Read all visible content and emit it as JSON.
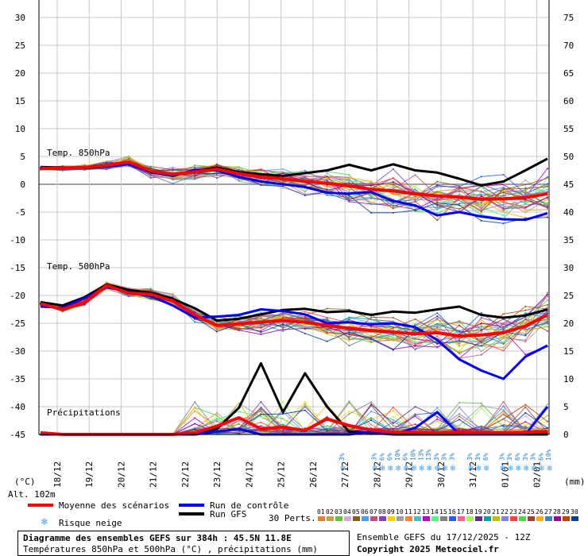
{
  "chart_data": {
    "type": "line",
    "title": "Diagramme des ensembles GEFS sur 384h : 45.5N 11.8E",
    "subtitle": "Températures 850hPa et 500hPa (°C) , précipitations (mm)",
    "left_axis": {
      "label": "(°C)",
      "min": -45,
      "max": 30,
      "ticks": [
        30,
        25,
        20,
        15,
        10,
        5,
        0,
        -5,
        -10,
        -15,
        -20,
        -25,
        -30,
        -35,
        -40,
        -45
      ]
    },
    "right_axis": {
      "label": "(mm)",
      "ticks": [
        75,
        70,
        65,
        60,
        55,
        50,
        45,
        40,
        35,
        30,
        25,
        20,
        15,
        10,
        5,
        0
      ]
    },
    "x_labels": [
      "18/12",
      "19/12",
      "20/12",
      "21/12",
      "22/12",
      "23/12",
      "24/12",
      "25/12",
      "26/12",
      "27/12",
      "28/12",
      "29/12",
      "30/12",
      "31/12",
      "01/01",
      "02/01"
    ],
    "panel_labels": {
      "t850": "Temp. 850hPa",
      "t500": "Temp. 500hPa",
      "precip": "Précipitations"
    },
    "grid": true,
    "series": [
      {
        "name": "Moyenne des scénarios",
        "color": "#ff0000",
        "t850": [
          2.8,
          2.9,
          3.0,
          3.4,
          4.0,
          2.4,
          1.8,
          2.2,
          2.7,
          1.9,
          1.3,
          1.0,
          0.5,
          0.2,
          -0.3,
          -0.9,
          -1.2,
          -1.7,
          -2.1,
          -2.3,
          -2.7,
          -2.6,
          -2.4,
          -1.7
        ],
        "t500": [
          -21.5,
          -22.5,
          -21.2,
          -18.2,
          -19.6,
          -19.8,
          -21.0,
          -23.5,
          -25.4,
          -25.1,
          -24.8,
          -24.5,
          -24.8,
          -25.4,
          -25.9,
          -26.3,
          -26.6,
          -26.9,
          -26.7,
          -27.3,
          -27.1,
          -26.7,
          -25.5,
          -23.5
        ],
        "precip": [
          0.3,
          0,
          0,
          0,
          0,
          0,
          0,
          0.3,
          1.5,
          3.0,
          1.0,
          1.3,
          0.7,
          2.8,
          1.6,
          0.8,
          0.4,
          0.4,
          0.3,
          0.4,
          0.3,
          0.3,
          0.4,
          0.5
        ]
      },
      {
        "name": "Run de contrôle",
        "color": "#0000ff",
        "t850": [
          3.0,
          2.8,
          3.1,
          3.2,
          3.6,
          2.3,
          1.5,
          2.6,
          2.5,
          1.3,
          0.5,
          0.0,
          -0.5,
          -1.5,
          -1.7,
          -1.4,
          -3.0,
          -3.8,
          -5.6,
          -5.0,
          -5.8,
          -6.3,
          -6.4,
          -5.2
        ],
        "t500": [
          -22.0,
          -22.2,
          -20.5,
          -18.5,
          -19.4,
          -20.1,
          -21.8,
          -24.0,
          -23.8,
          -23.5,
          -22.5,
          -22.8,
          -23.4,
          -25.0,
          -24.8,
          -25.2,
          -25.0,
          -25.7,
          -28.0,
          -31.5,
          -33.5,
          -35.0,
          -31.0,
          -29.0
        ],
        "precip": [
          0,
          0,
          0,
          0,
          0,
          0,
          0,
          0,
          0.5,
          1.0,
          0,
          0,
          0,
          0,
          0,
          0.5,
          0,
          1.2,
          4.0,
          0,
          0,
          0,
          0,
          5.0
        ]
      },
      {
        "name": "Run GFS",
        "color": "#000000",
        "t850": [
          3.1,
          3.0,
          2.9,
          3.2,
          3.8,
          2.2,
          1.6,
          2.4,
          3.0,
          2.2,
          1.8,
          1.5,
          2.0,
          2.5,
          3.5,
          2.5,
          3.6,
          2.5,
          2.1,
          1.0,
          -0.2,
          0.5,
          2.5,
          4.6
        ],
        "t500": [
          -21.2,
          -21.8,
          -20.3,
          -18.0,
          -19.0,
          -19.5,
          -20.6,
          -22.3,
          -24.5,
          -24.2,
          -23.4,
          -22.6,
          -22.4,
          -23.0,
          -22.8,
          -23.5,
          -22.9,
          -23.1,
          -22.5,
          -22.0,
          -23.5,
          -24.0,
          -23.6,
          -22.5
        ],
        "precip": [
          0,
          0,
          0,
          0,
          0,
          0,
          0,
          0,
          1.0,
          4.8,
          12.8,
          4.0,
          11.0,
          5.0,
          0.5,
          0.3,
          0,
          0,
          0,
          0,
          0,
          0,
          0,
          0
        ]
      }
    ],
    "snow_markers": [
      {
        "day": "27/12",
        "labels": [
          "3%"
        ]
      },
      {
        "day": "28/12",
        "labels": [
          "3%",
          "6%",
          "6%",
          "10%",
          "6%",
          "10%",
          "13%",
          "13%",
          "3%",
          "3%",
          "3%"
        ]
      },
      {
        "day": "31/12",
        "labels": [
          "3%",
          "3%",
          "6%"
        ]
      },
      {
        "day": "01/01",
        "labels": [
          "3%",
          "3%",
          "6%",
          "3%",
          "3%",
          "6%",
          "10%"
        ]
      }
    ]
  },
  "legend": {
    "mean": "Moyenne des scénarios",
    "control": "Run de contrôle",
    "gfs": "Run GFS",
    "snow": "Risque neige",
    "perts": "30 Perts.",
    "alt": "Alt. 102m"
  },
  "perturbations": {
    "labels": [
      "01",
      "02",
      "03",
      "04",
      "05",
      "06",
      "07",
      "08",
      "09",
      "10",
      "11",
      "12",
      "13",
      "14",
      "15",
      "16",
      "17",
      "18",
      "19",
      "20",
      "21",
      "22",
      "23",
      "24",
      "25",
      "26",
      "27",
      "28",
      "29",
      "30"
    ],
    "colors": [
      "#e08030",
      "#c8a040",
      "#60c040",
      "#d8a8e0",
      "#806020",
      "#40a0ff",
      "#c05080",
      "#8040c0",
      "#ffd000",
      "#a0a0a0",
      "#ff8040",
      "#40c0c0",
      "#c000c0",
      "#40ff80",
      "#808080",
      "#2060ff",
      "#ff6090",
      "#a0ff40",
      "#603080",
      "#00a0a0",
      "#c0c000",
      "#8080ff",
      "#ff4040",
      "#40e040",
      "#a04040",
      "#ffb000",
      "#4080c0",
      "#a000a0",
      "#c04000",
      "#0040a0"
    ]
  },
  "footer": {
    "title": "Diagramme des ensembles GEFS sur 384h : 45.5N 11.8E",
    "subtitle": "Températures 850hPa et 500hPa (°C) , précipitations (mm)",
    "run": "Ensemble GEFS du 17/12/2025 - 12Z",
    "copyright": "Copyright 2025 Meteociel.fr"
  }
}
